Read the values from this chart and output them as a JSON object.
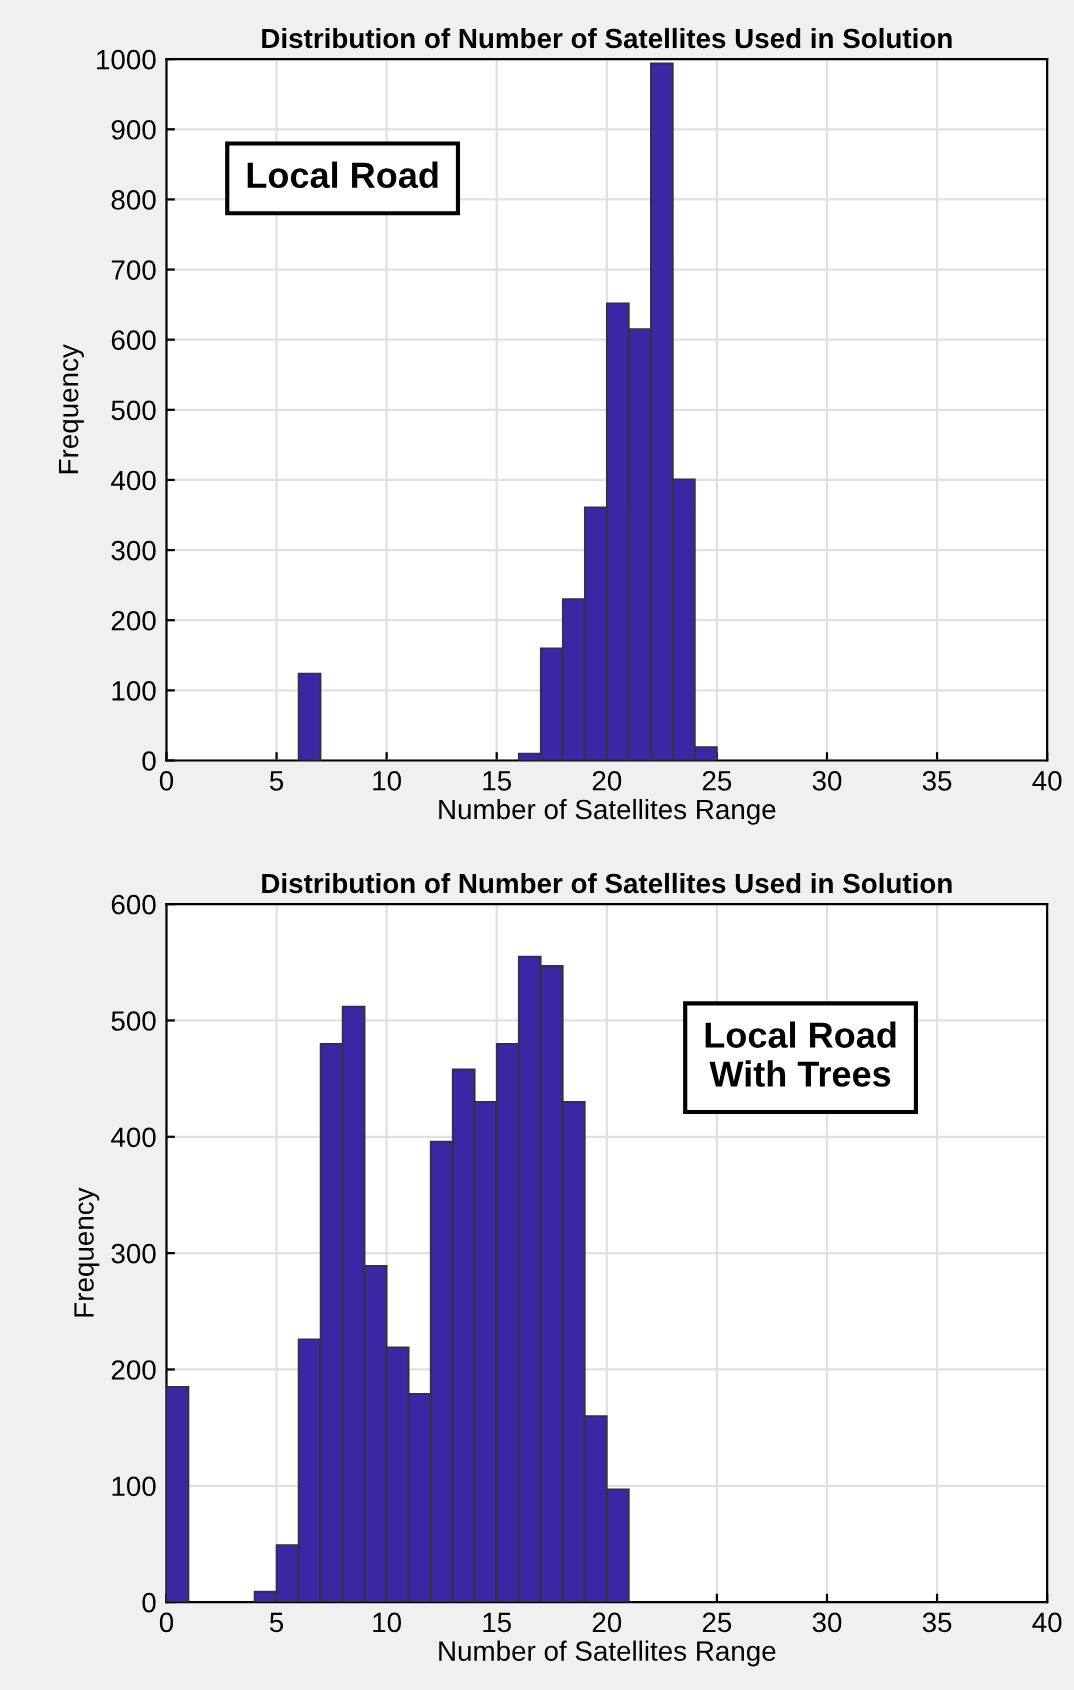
{
  "chart_data": [
    {
      "type": "histogram",
      "title": "Distribution of Number of Satellites Used in Solution",
      "xlabel": "Number of Satellites Range",
      "ylabel": "Frequency",
      "annotations": [
        "Local Road"
      ],
      "color": "#3b26a3",
      "bins": [
        6,
        7,
        8,
        9,
        10,
        11,
        12,
        13,
        14,
        15,
        16,
        17,
        18,
        19,
        20,
        21,
        22,
        23,
        24,
        25
      ],
      "values": [
        124,
        0,
        0,
        0,
        0,
        0,
        0,
        0,
        0,
        0,
        10,
        160,
        230,
        361,
        652,
        615,
        994,
        401,
        19
      ],
      "xlim": [
        0,
        40
      ],
      "xticks": [
        0,
        5,
        10,
        15,
        20,
        25,
        30,
        35,
        40
      ],
      "ylim": [
        0,
        1000
      ],
      "yticks": [
        0,
        100,
        200,
        300,
        400,
        500,
        600,
        700,
        800,
        900,
        1000
      ],
      "grid": true
    },
    {
      "type": "histogram",
      "title": "Distribution of Number of Satellites Used in Solution",
      "xlabel": "Number of Satellites Range",
      "ylabel": "Frequency",
      "annotations": [
        "Local Road\nWith Trees"
      ],
      "color": "#3b26a3",
      "bins": [
        0,
        1,
        2,
        3,
        4,
        5,
        6,
        7,
        8,
        9,
        10,
        11,
        12,
        13,
        14,
        15,
        16,
        17,
        18,
        19,
        20,
        21
      ],
      "values": [
        185,
        0,
        0,
        0,
        9,
        49,
        226,
        480,
        512,
        289,
        219,
        179,
        396,
        458,
        430,
        480,
        555,
        547,
        430,
        160,
        97
      ],
      "xlim": [
        0,
        40
      ],
      "xticks": [
        0,
        5,
        10,
        15,
        20,
        25,
        30,
        35,
        40
      ],
      "ylim": [
        0,
        600
      ],
      "yticks": [
        0,
        100,
        200,
        300,
        400,
        500,
        600
      ],
      "grid": true
    }
  ]
}
